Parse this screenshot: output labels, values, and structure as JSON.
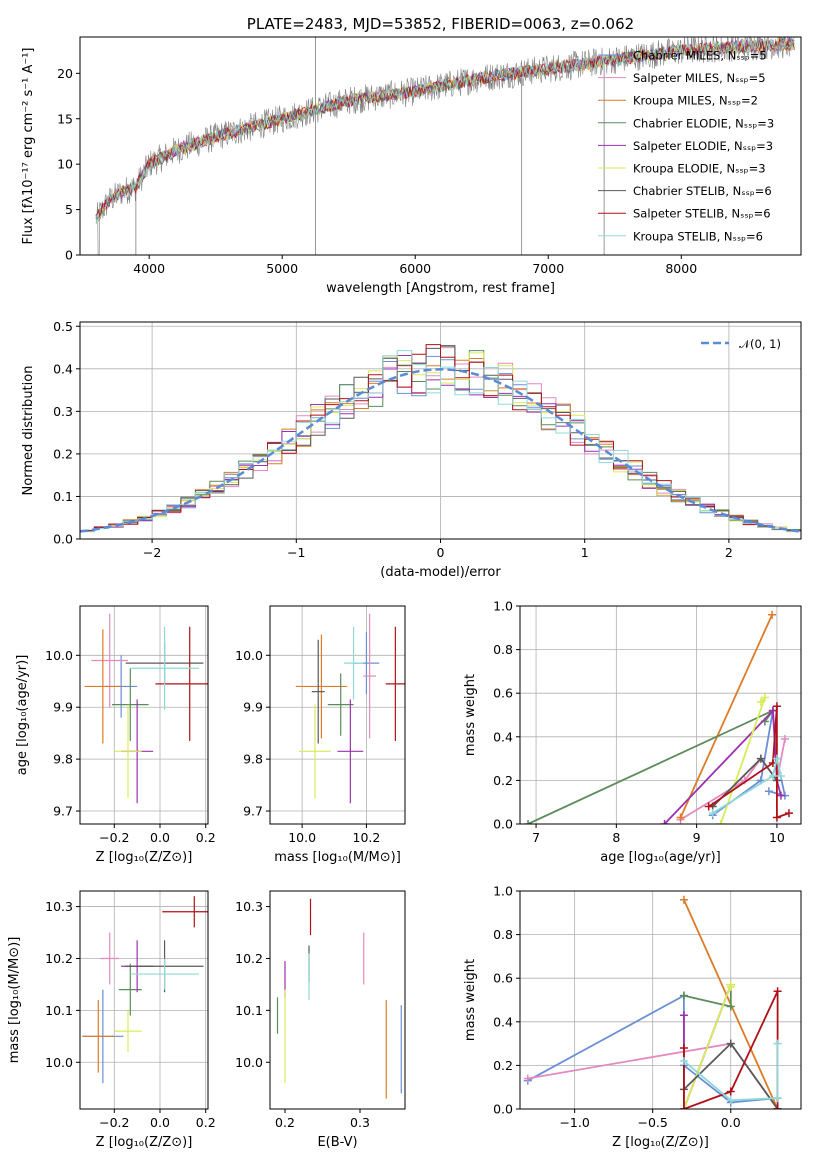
{
  "colors": [
    "#6a8fd6",
    "#e38abf",
    "#dd7b27",
    "#5b8c5a",
    "#9c31b0",
    "#d8eb5a",
    "#5a5a5a",
    "#b01018",
    "#8fd8d8"
  ],
  "chart_data": [
    {
      "id": "spectrum",
      "type": "line",
      "title": "PLATE=2483, MJD=53852, FIBERID=0063, z=0.062",
      "xlabel": "wavelength [Angstrom, rest frame]",
      "ylabel": "Flux [fλ10⁻¹⁷ erg cm⁻² s⁻¹ A⁻¹]",
      "xlim": [
        3480,
        8900
      ],
      "ylim": [
        0,
        24
      ],
      "xticks": [
        4000,
        5000,
        6000,
        7000,
        8000
      ],
      "yticks": [
        0,
        5,
        10,
        15,
        20
      ],
      "grid": false,
      "legend_position": "right",
      "legend": [
        "Chabrier MILES, Nₛₛₚ=5",
        "Salpeter MILES, Nₛₛₚ=5",
        "Kroupa MILES, Nₛₛₚ=2",
        "Chabrier ELODIE, Nₛₛₚ=3",
        "Salpeter ELODIE, Nₛₛₚ=3",
        "Kroupa ELODIE, Nₛₛₚ=3",
        "Chabrier STELIB, Nₛₛₚ=6",
        "Salpeter STELIB, Nₛₛₚ=6",
        "Kroupa STELIB, Nₛₛₚ=6"
      ],
      "continuum": [
        [
          3600,
          4
        ],
        [
          3700,
          6
        ],
        [
          3800,
          7
        ],
        [
          3900,
          7.5
        ],
        [
          4000,
          10
        ],
        [
          4200,
          11.5
        ],
        [
          4500,
          13
        ],
        [
          5000,
          15
        ],
        [
          5500,
          17
        ],
        [
          6000,
          18
        ],
        [
          6500,
          19.5
        ],
        [
          7000,
          20.5
        ],
        [
          7500,
          21.5
        ],
        [
          8000,
          22.5
        ],
        [
          8500,
          23
        ],
        [
          8850,
          23.2
        ]
      ]
    },
    {
      "id": "residuals",
      "type": "line",
      "xlabel": "(data-model)/error",
      "ylabel": "Normed distribution",
      "xlim": [
        -2.5,
        2.5
      ],
      "ylim": [
        0,
        0.51
      ],
      "xticks": [
        -2,
        -1,
        0,
        1,
        2
      ],
      "yticks": [
        0.0,
        0.1,
        0.2,
        0.3,
        0.4,
        0.5
      ],
      "grid": true,
      "legend_position": "top-right",
      "legend": [
        "𝒩(0, 1)"
      ],
      "bin_width": 0.1
    },
    {
      "id": "age_vs_Z",
      "type": "scatter",
      "xlabel": "Z [log₁₀(Z/Z⊙)]",
      "ylabel": "age  [log₁₀(age/yr)]",
      "xlim": [
        -0.35,
        0.21
      ],
      "ylim": [
        9.675,
        10.095
      ],
      "xticks": [
        -0.2,
        0.0,
        0.2
      ],
      "yticks": [
        9.7,
        9.8,
        9.9,
        10.0
      ],
      "grid": true,
      "points": [
        {
          "x": -0.17,
          "y": 9.94,
          "xerr": 0.07,
          "yerr": 0.06
        },
        {
          "x": -0.22,
          "y": 9.99,
          "xerr": 0.08,
          "yerr": 0.09
        },
        {
          "x": -0.25,
          "y": 9.94,
          "xerr": 0.08,
          "yerr": 0.11
        },
        {
          "x": -0.13,
          "y": 9.905,
          "xerr": 0.08,
          "yerr": 0.07
        },
        {
          "x": -0.1,
          "y": 9.815,
          "xerr": 0.07,
          "yerr": 0.1
        },
        {
          "x": -0.14,
          "y": 9.815,
          "xerr": 0.06,
          "yerr": 0.09
        },
        {
          "x": 0.02,
          "y": 9.985,
          "xerr": 0.17,
          "yerr": 0.04
        },
        {
          "x": 0.13,
          "y": 9.945,
          "xerr": 0.15,
          "yerr": 0.11
        },
        {
          "x": 0.02,
          "y": 9.975,
          "xerr": 0.15,
          "yerr": 0.08
        }
      ]
    },
    {
      "id": "age_vs_mass",
      "type": "scatter",
      "xlabel": "mass [log₁₀(M/M⊙)]",
      "xlim": [
        9.9,
        10.32
      ],
      "ylim": [
        9.675,
        10.095
      ],
      "xticks": [
        10.0,
        10.2
      ],
      "yticks": [
        9.7,
        9.8,
        9.9,
        10.0
      ],
      "grid": true,
      "points": [
        {
          "x": 10.2,
          "y": 9.985,
          "xerr": 0.04,
          "yerr": 0.06
        },
        {
          "x": 10.21,
          "y": 9.96,
          "xerr": 0.02,
          "yerr": 0.12
        },
        {
          "x": 10.06,
          "y": 9.94,
          "xerr": 0.08,
          "yerr": 0.1
        },
        {
          "x": 10.12,
          "y": 9.905,
          "xerr": 0.04,
          "yerr": 0.06
        },
        {
          "x": 10.15,
          "y": 9.815,
          "xerr": 0.04,
          "yerr": 0.1
        },
        {
          "x": 10.04,
          "y": 9.815,
          "xerr": 0.05,
          "yerr": 0.09
        },
        {
          "x": 10.05,
          "y": 9.93,
          "xerr": 0.02,
          "yerr": 0.1
        },
        {
          "x": 10.29,
          "y": 9.945,
          "xerr": 0.03,
          "yerr": 0.11
        },
        {
          "x": 10.16,
          "y": 9.985,
          "xerr": 0.03,
          "yerr": 0.07
        }
      ]
    },
    {
      "id": "weight_vs_age",
      "type": "line",
      "xlabel": "age  [log₁₀(age/yr)]",
      "ylabel": "mass weight",
      "xlim": [
        6.8,
        10.3
      ],
      "ylim": [
        0,
        1.0
      ],
      "xticks": [
        7,
        8,
        9,
        10
      ],
      "yticks": [
        0.0,
        0.2,
        0.4,
        0.6,
        0.8,
        1.0
      ],
      "grid": true,
      "series": [
        {
          "x": [
            9.2,
            9.8,
            9.95,
            10.0,
            10.1,
            9.9
          ],
          "y": [
            0.04,
            0.2,
            0.52,
            0.3,
            0.13,
            0.15
          ]
        },
        {
          "x": [
            8.8,
            9.6,
            9.8,
            10.0,
            10.1
          ],
          "y": [
            0.02,
            0.2,
            0.3,
            0.2,
            0.39
          ]
        },
        {
          "x": [
            8.8,
            9.94
          ],
          "y": [
            0.03,
            0.96
          ]
        },
        {
          "x": [
            6.9,
            9.95,
            9.85
          ],
          "y": [
            0.0,
            0.52,
            0.47
          ]
        },
        {
          "x": [
            8.6,
            9.95,
            10.0,
            10.05
          ],
          "y": [
            0.0,
            0.52,
            0.2,
            0.13
          ]
        },
        {
          "x": [
            9.3,
            9.85,
            9.8
          ],
          "y": [
            0.0,
            0.58,
            0.56
          ]
        },
        {
          "x": [
            9.2,
            9.8,
            10.0
          ],
          "y": [
            0.08,
            0.3,
            0.2
          ]
        },
        {
          "x": [
            9.15,
            9.95,
            10.0,
            10.0,
            10.15
          ],
          "y": [
            0.08,
            0.28,
            0.54,
            0.03,
            0.05
          ]
        },
        {
          "x": [
            9.2,
            9.95,
            10.0,
            10.05
          ],
          "y": [
            0.05,
            0.22,
            0.3,
            0.22
          ]
        }
      ]
    },
    {
      "id": "mass_vs_Z",
      "type": "scatter",
      "xlabel": "Z [log₁₀(Z/Z⊙)]",
      "ylabel": "mass [log₁₀(M/M⊙)]",
      "xlim": [
        -0.35,
        0.21
      ],
      "ylim": [
        9.91,
        10.33
      ],
      "xticks": [
        -0.2,
        0.0,
        0.2
      ],
      "yticks": [
        10.0,
        10.1,
        10.2,
        10.3
      ],
      "grid": true,
      "points": [
        {
          "x": -0.25,
          "y": 10.05,
          "xerr": 0.09,
          "yerr": 0.09
        },
        {
          "x": -0.22,
          "y": 10.2,
          "xerr": 0.04,
          "yerr": 0.05
        },
        {
          "x": -0.27,
          "y": 10.05,
          "xerr": 0.07,
          "yerr": 0.07
        },
        {
          "x": -0.13,
          "y": 10.14,
          "xerr": 0.05,
          "yerr": 0.05
        },
        {
          "x": -0.1,
          "y": 10.185,
          "xerr": 0.07,
          "yerr": 0.05
        },
        {
          "x": -0.14,
          "y": 10.06,
          "xerr": 0.06,
          "yerr": 0.04
        },
        {
          "x": 0.02,
          "y": 10.185,
          "xerr": 0.17,
          "yerr": 0.05
        },
        {
          "x": 0.15,
          "y": 10.29,
          "xerr": 0.14,
          "yerr": 0.03
        },
        {
          "x": 0.02,
          "y": 10.17,
          "xerr": 0.15,
          "yerr": 0.03
        }
      ]
    },
    {
      "id": "mass_vs_EBV",
      "type": "scatter",
      "xlabel": "E(B-V)",
      "xlim": [
        0.18,
        0.36
      ],
      "ylim": [
        9.91,
        10.33
      ],
      "xticks": [
        0.2,
        0.3
      ],
      "yticks": [
        10.0,
        10.1,
        10.2,
        10.3
      ],
      "grid": false,
      "points": [
        {
          "x": 0.355,
          "y": 10.025,
          "xerr": 0,
          "yerr": 0.085
        },
        {
          "x": 0.305,
          "y": 10.2,
          "xerr": 0,
          "yerr": 0.05
        },
        {
          "x": 0.335,
          "y": 10.025,
          "xerr": 0,
          "yerr": 0.095
        },
        {
          "x": 0.19,
          "y": 10.09,
          "xerr": 0,
          "yerr": 0.035
        },
        {
          "x": 0.2,
          "y": 10.16,
          "xerr": 0,
          "yerr": 0.035
        },
        {
          "x": 0.2,
          "y": 10.05,
          "xerr": 0,
          "yerr": 0.09
        },
        {
          "x": 0.232,
          "y": 10.19,
          "xerr": 0,
          "yerr": 0.035
        },
        {
          "x": 0.234,
          "y": 10.28,
          "xerr": 0,
          "yerr": 0.035
        },
        {
          "x": 0.232,
          "y": 10.165,
          "xerr": 0,
          "yerr": 0.045
        }
      ]
    },
    {
      "id": "weight_vs_Z",
      "type": "line",
      "xlabel": "Z [log₁₀(Z/Z⊙)]",
      "ylabel": "mass weight",
      "xlim": [
        -1.35,
        0.45
      ],
      "ylim": [
        0,
        1.0
      ],
      "xticks": [
        -1.0,
        -0.5,
        0.0
      ],
      "yticks": [
        0.0,
        0.2,
        0.4,
        0.6,
        0.8,
        1.0
      ],
      "grid": true,
      "series": [
        {
          "x": [
            -1.3,
            -0.3,
            -0.3,
            0.0,
            0.3
          ],
          "y": [
            0.13,
            0.52,
            0.2,
            0.03,
            0.05
          ]
        },
        {
          "x": [
            -1.3,
            0.0,
            0.3
          ],
          "y": [
            0.14,
            0.3,
            0.0
          ]
        },
        {
          "x": [
            -0.3,
            0.3
          ],
          "y": [
            0.96,
            0.0
          ]
        },
        {
          "x": [
            -0.3,
            0.0,
            0.0
          ],
          "y": [
            0.52,
            0.47,
            0.57
          ]
        },
        {
          "x": [
            -0.3,
            -0.3,
            0.0
          ],
          "y": [
            0.43,
            0.0,
            0.57
          ]
        },
        {
          "x": [
            -0.3,
            0.0,
            0.0
          ],
          "y": [
            0.0,
            0.57,
            0.56
          ]
        },
        {
          "x": [
            -0.3,
            0.0,
            0.3
          ],
          "y": [
            0.09,
            0.3,
            0.0
          ]
        },
        {
          "x": [
            -0.3,
            -0.3,
            0.0,
            0.3,
            0.3
          ],
          "y": [
            0.28,
            0.0,
            0.08,
            0.54,
            0.0
          ]
        },
        {
          "x": [
            -0.3,
            0.0,
            0.3,
            0.3
          ],
          "y": [
            0.22,
            0.04,
            0.05,
            0.3
          ]
        }
      ]
    }
  ]
}
